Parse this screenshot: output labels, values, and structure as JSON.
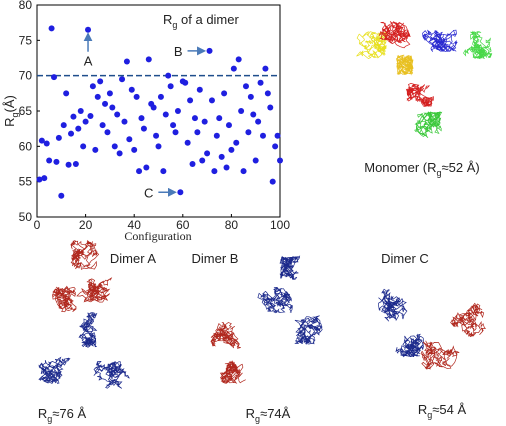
{
  "chart_data": {
    "type": "scatter",
    "title": {
      "main": "R",
      "sub": "g",
      "rest": " of a dimer"
    },
    "x_label": "Configuration",
    "y_label": {
      "main": "R",
      "sub": "g",
      "rest": "(Å)"
    },
    "x": [
      1,
      2,
      3,
      4,
      5,
      6,
      7,
      8,
      9,
      10,
      11,
      12,
      13,
      14,
      15,
      16,
      17,
      18,
      19,
      20,
      21,
      22,
      23,
      24,
      25,
      26,
      27,
      28,
      29,
      30,
      31,
      32,
      33,
      34,
      35,
      36,
      37,
      38,
      39,
      40,
      41,
      42,
      43,
      44,
      45,
      46,
      47,
      48,
      49,
      50,
      51,
      52,
      53,
      54,
      55,
      56,
      57,
      58,
      59,
      60,
      61,
      62,
      63,
      64,
      65,
      66,
      67,
      68,
      69,
      70,
      71,
      72,
      73,
      74,
      75,
      76,
      77,
      78,
      79,
      80,
      81,
      82,
      83,
      84,
      85,
      86,
      87,
      88,
      89,
      90,
      91,
      92,
      93,
      94,
      95,
      96,
      97,
      98,
      99,
      100
    ],
    "values": [
      55.3,
      60.8,
      55.5,
      60.4,
      58.0,
      76.7,
      69.8,
      57.8,
      61.2,
      53.0,
      63.0,
      67.5,
      57.4,
      61.8,
      64.2,
      57.5,
      62.5,
      65.0,
      60.0,
      63.5,
      76.5,
      64.3,
      68.5,
      59.5,
      67.0,
      69.2,
      63.0,
      66.0,
      62.0,
      67.5,
      65.5,
      60.0,
      64.5,
      59.0,
      69.5,
      63.5,
      72.0,
      61.0,
      68.0,
      59.5,
      67.0,
      56.5,
      64.0,
      62.5,
      57.0,
      72.3,
      66.0,
      65.5,
      61.5,
      60.0,
      67.0,
      56.5,
      64.5,
      70.0,
      68.5,
      63.0,
      62.0,
      65.0,
      53.5,
      69.2,
      69.0,
      60.5,
      66.5,
      57.5,
      64.0,
      62.0,
      68.0,
      58.0,
      63.5,
      59.0,
      73.5,
      66.5,
      56.5,
      61.5,
      64.0,
      58.5,
      67.5,
      57.0,
      63.0,
      59.5,
      71.0,
      60.5,
      72.3,
      65.0,
      56.5,
      68.5,
      62.0,
      67.0,
      64.5,
      58.0,
      63.5,
      69.0,
      61.5,
      71.0,
      67.5,
      65.5,
      55.0,
      60.0,
      61.5,
      58.0
    ],
    "color": "#1f1fe0",
    "reference_line": 70,
    "reference_color": "#1f4e8c",
    "annotations": [
      {
        "text": "A",
        "x": 21,
        "y": 76.5
      },
      {
        "text": "B",
        "x": 71,
        "y": 73.5
      },
      {
        "text": "C",
        "x": 59,
        "y": 53.5
      }
    ],
    "xlim": [
      0,
      100
    ],
    "ylim": [
      50,
      80
    ],
    "xticks": [
      0,
      20,
      40,
      60,
      80,
      100
    ],
    "yticks": [
      50,
      55,
      60,
      65,
      70,
      75,
      80
    ]
  },
  "structures": {
    "monomer": {
      "main": "Monomer (R",
      "sub": "g",
      "rest": "≈52 Å)"
    },
    "dimers": [
      {
        "name": "Dimer A",
        "main": "R",
        "sub": "g",
        "rest": "≈76 Å"
      },
      {
        "name": "Dimer B",
        "main": "R",
        "sub": "g",
        "rest": "≈74Å"
      },
      {
        "name": "Dimer C",
        "main": "R",
        "sub": "g",
        "rest": "≈54 Å"
      }
    ]
  }
}
